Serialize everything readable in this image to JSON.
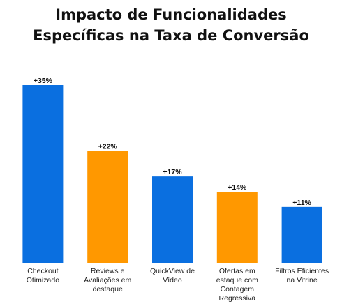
{
  "title_lines": [
    "Impacto de Funcionalidades",
    "Específicas na Taxa de Conversão"
  ],
  "colors": {
    "blue": "#0a6fe0",
    "orange": "#ff9800",
    "axis": "#222222"
  },
  "chart_data": {
    "type": "bar",
    "title": "Impacto de Funcionalidades Específicas na Taxa de Conversão",
    "xlabel": "",
    "ylabel": "",
    "ylim": [
      0,
      40
    ],
    "grid": false,
    "categories": [
      [
        "Checkout",
        "Otimizado"
      ],
      [
        "Reviews e",
        "Avaliações em",
        "destaque"
      ],
      [
        "QuickView de",
        "Vídeo"
      ],
      [
        "Ofertas em",
        "estaque com",
        "Contagem",
        "Regressiva"
      ],
      [
        "Filtros Eficientes",
        "na Vitrine"
      ]
    ],
    "values": [
      35,
      22,
      17,
      14,
      11
    ],
    "data_labels": [
      "+35%",
      "+22%",
      "+17%",
      "+14%",
      "+11%"
    ],
    "bar_colors": [
      "blue",
      "orange",
      "blue",
      "orange",
      "blue"
    ]
  }
}
